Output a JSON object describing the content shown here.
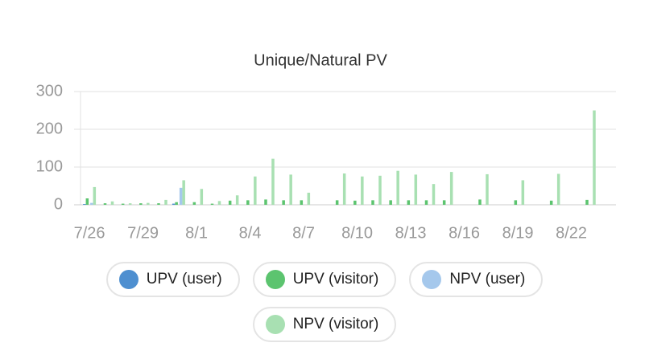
{
  "chart_data": {
    "type": "bar",
    "title": "Unique/Natural PV",
    "categories": [
      "7/26",
      null,
      null,
      "7/29",
      null,
      null,
      "8/1",
      null,
      null,
      "8/4",
      null,
      null,
      "8/7",
      null,
      null,
      "8/10",
      null,
      null,
      "8/13",
      null,
      null,
      "8/16",
      null,
      null,
      "8/19",
      null,
      null,
      "8/22",
      null,
      null
    ],
    "series": [
      {
        "name": "UPV (user)",
        "color": "#4e8fd0",
        "values": [
          2,
          0,
          0,
          0,
          0,
          3,
          0,
          0,
          0,
          0,
          0,
          0,
          0,
          0,
          0,
          0,
          0,
          0,
          0,
          0,
          0,
          0,
          0,
          0,
          0,
          0,
          0,
          0,
          0,
          0
        ]
      },
      {
        "name": "UPV (visitor)",
        "color": "#5cc46f",
        "values": [
          17,
          4,
          3,
          4,
          4,
          7,
          7,
          3,
          11,
          12,
          14,
          12,
          12,
          0,
          12,
          11,
          12,
          12,
          12,
          12,
          12,
          0,
          14,
          0,
          12,
          0,
          11,
          0,
          13,
          0
        ]
      },
      {
        "name": "NPV (user)",
        "color": "#a5c8ec",
        "values": [
          5,
          0,
          0,
          0,
          0,
          45,
          0,
          0,
          0,
          0,
          0,
          0,
          0,
          0,
          0,
          0,
          0,
          0,
          0,
          0,
          0,
          0,
          0,
          0,
          0,
          0,
          0,
          0,
          0,
          0
        ]
      },
      {
        "name": "NPV (visitor)",
        "color": "#a8e0b2",
        "values": [
          47,
          9,
          4,
          5,
          13,
          65,
          42,
          10,
          25,
          75,
          122,
          80,
          32,
          0,
          83,
          75,
          77,
          90,
          80,
          55,
          87,
          0,
          81,
          0,
          65,
          0,
          82,
          0,
          250,
          0
        ]
      }
    ],
    "ylim": [
      0,
      300
    ],
    "yticks": [
      0,
      100,
      200,
      300
    ],
    "grid": true
  }
}
